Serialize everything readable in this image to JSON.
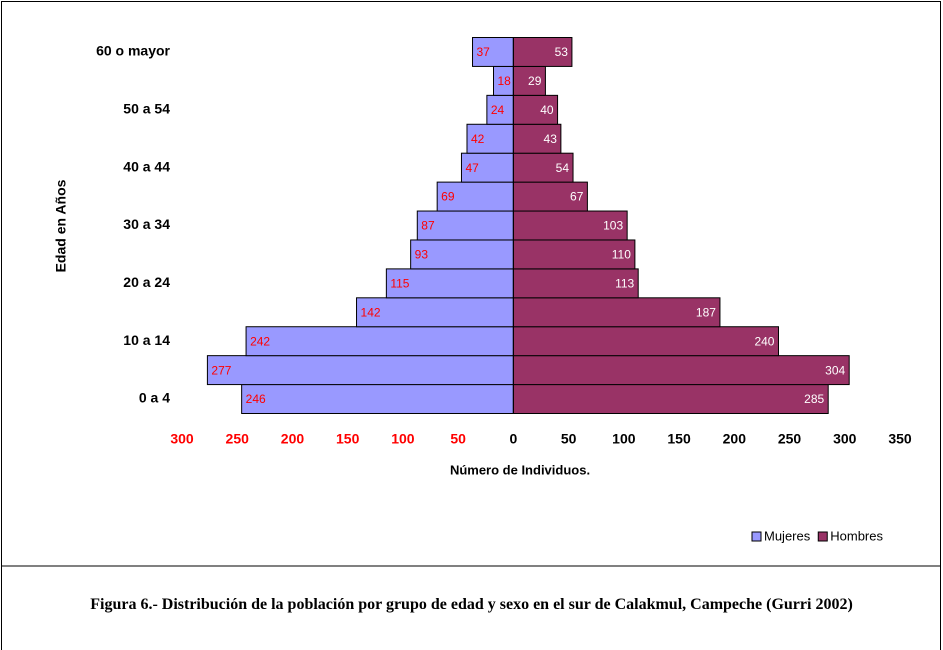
{
  "chart_data": {
    "type": "pyramid",
    "caption": "Figura 6.- Distribución de la población por grupo de edad y sexo en el sur de Calakmul, Campeche (Gurri 2002)",
    "xlabel": "Número de Individuos.",
    "ylabel": "Edad en Años",
    "categories": [
      "0 a 4",
      null,
      "10 a 14",
      null,
      "20 a 24",
      null,
      "30 a 34",
      null,
      "40 a 44",
      null,
      "50 a 54",
      null,
      "60 o mayor"
    ],
    "series": [
      {
        "name": "Mujeres",
        "color": "#9999ff",
        "label_color": "#ff0000",
        "side": "left",
        "values": [
          246,
          277,
          242,
          142,
          115,
          93,
          87,
          69,
          47,
          42,
          24,
          18,
          37
        ]
      },
      {
        "name": "Hombres",
        "color": "#993366",
        "label_color": "#ffffff",
        "side": "right",
        "values": [
          285,
          304,
          240,
          187,
          113,
          110,
          103,
          67,
          54,
          43,
          40,
          29,
          53
        ]
      }
    ],
    "xlim": [
      -300,
      350
    ],
    "xticks": [
      {
        "value": -300,
        "label": "300"
      },
      {
        "value": -250,
        "label": "250"
      },
      {
        "value": -200,
        "label": "200"
      },
      {
        "value": -150,
        "label": "150"
      },
      {
        "value": -100,
        "label": "100"
      },
      {
        "value": -50,
        "label": "50"
      },
      0,
      50,
      100,
      150,
      200,
      250,
      300,
      350
    ],
    "left_tick_color": "#ff0000",
    "legend": "bottom-right"
  }
}
